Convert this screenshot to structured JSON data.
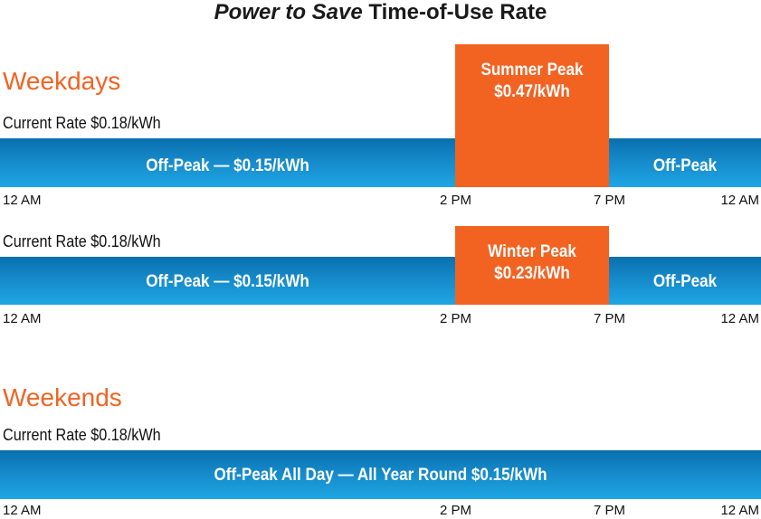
{
  "title": {
    "italic": "Power to Save",
    "rest": " Time-of-Use Rate"
  },
  "sections": {
    "weekdays": "Weekdays",
    "weekends": "Weekends"
  },
  "rows": [
    {
      "current_rate": "Current Rate $0.18/kWh",
      "off_peak_left": "Off-Peak — $0.15/kWh",
      "off_peak_right": "Off-Peak",
      "peak_label": "Summer Peak",
      "peak_rate": "$0.47/kWh"
    },
    {
      "current_rate": "Current Rate $0.18/kWh",
      "off_peak_left": "Off-Peak — $0.15/kWh",
      "off_peak_right": "Off-Peak",
      "peak_label": "Winter Peak",
      "peak_rate": "$0.23/kWh"
    },
    {
      "current_rate": "Current Rate $0.18/kWh",
      "all_day": "Off-Peak All Day — All Year Round $0.15/kWh"
    }
  ],
  "ticks": [
    "12 AM",
    "2 PM",
    "7 PM",
    "12 AM"
  ],
  "colors": {
    "peak": "#f26322",
    "off_peak": "#1589c9",
    "section": "#f26322"
  },
  "chart_data": {
    "type": "bar",
    "title": "Power to Save Time-of-Use Rate",
    "x_ticks": [
      "12 AM",
      "2 PM",
      "7 PM",
      "12 AM"
    ],
    "hour_range": [
      0,
      24
    ],
    "series": [
      {
        "name": "Weekdays",
        "segments": [
          {
            "label": "Off-Peak",
            "start_hour": 0,
            "end_hour": 14,
            "rate_per_kwh": 0.15
          },
          {
            "label": "Summer Peak",
            "start_hour": 14,
            "end_hour": 19,
            "rate_per_kwh": 0.47
          },
          {
            "label": "Off-Peak",
            "start_hour": 19,
            "end_hour": 24,
            "rate_per_kwh": 0.15
          }
        ],
        "current_rate_per_kwh": 0.18
      },
      {
        "name": "Weekdays",
        "segments": [
          {
            "label": "Off-Peak",
            "start_hour": 0,
            "end_hour": 14,
            "rate_per_kwh": 0.15
          },
          {
            "label": "Winter Peak",
            "start_hour": 14,
            "end_hour": 19,
            "rate_per_kwh": 0.23
          },
          {
            "label": "Off-Peak",
            "start_hour": 19,
            "end_hour": 24,
            "rate_per_kwh": 0.15
          }
        ],
        "current_rate_per_kwh": 0.18
      },
      {
        "name": "Weekends",
        "segments": [
          {
            "label": "Off-Peak All Day",
            "start_hour": 0,
            "end_hour": 24,
            "rate_per_kwh": 0.15
          }
        ],
        "current_rate_per_kwh": 0.18
      }
    ]
  }
}
